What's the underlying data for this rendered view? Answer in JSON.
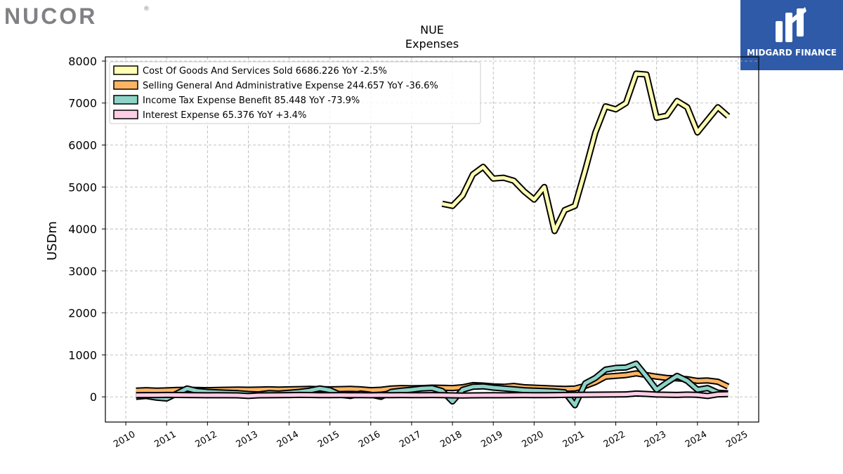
{
  "logos": {
    "left_brand": "NUCOR",
    "left_mark": "®",
    "right_brand": "MIDGARD FINANCE"
  },
  "chart_data": {
    "type": "line",
    "title": "NUE",
    "subtitle": "Expenses",
    "xlabel": "",
    "ylabel": "USDm",
    "xlim": [
      2009.5,
      2025.5
    ],
    "ylim": [
      -600,
      8100
    ],
    "x_ticks": [
      "2010",
      "2011",
      "2012",
      "2013",
      "2014",
      "2015",
      "2016",
      "2017",
      "2018",
      "2019",
      "2020",
      "2021",
      "2022",
      "2023",
      "2024",
      "2025"
    ],
    "y_ticks": [
      "0",
      "1000",
      "2000",
      "3000",
      "4000",
      "5000",
      "6000",
      "7000",
      "8000"
    ],
    "grid": true,
    "legend_position": "top-left",
    "series": [
      {
        "name": "Cost Of Goods And Services Sold",
        "legend": "Cost Of Goods And Services Sold  6686.226 YoY -2.5%",
        "color": "#ffffb3",
        "x": [
          2017.75,
          2018.0,
          2018.25,
          2018.5,
          2018.75,
          2019.0,
          2019.25,
          2019.5,
          2019.75,
          2020.0,
          2020.25,
          2020.5,
          2020.75,
          2021.0,
          2021.25,
          2021.5,
          2021.75,
          2022.0,
          2022.25,
          2022.5,
          2022.75,
          2023.0,
          2023.25,
          2023.5,
          2023.75,
          2024.0,
          2024.25,
          2024.5,
          2024.75
        ],
        "y": [
          4600,
          4550,
          4800,
          5300,
          5480,
          5200,
          5220,
          5150,
          4900,
          4700,
          5000,
          3950,
          4450,
          4550,
          5400,
          6300,
          6920,
          6850,
          7000,
          7700,
          7680,
          6650,
          6700,
          7050,
          6900,
          6300,
          6600,
          6900,
          6686
        ]
      },
      {
        "name": "Selling General And Administrative Expense",
        "legend": "Selling General And Administrative Expense  244.657 YoY -36.6%",
        "color": "#fdb462",
        "x": [
          2010.25,
          2010.5,
          2010.75,
          2011.0,
          2011.25,
          2011.5,
          2011.75,
          2012.0,
          2012.25,
          2012.5,
          2012.75,
          2013.0,
          2013.25,
          2013.5,
          2013.75,
          2014.0,
          2014.25,
          2014.5,
          2014.75,
          2015.0,
          2015.25,
          2015.5,
          2015.75,
          2016.0,
          2016.25,
          2016.5,
          2016.75,
          2017.0,
          2017.25,
          2017.5,
          2017.75,
          2018.0,
          2018.25,
          2018.5,
          2018.75,
          2019.0,
          2019.25,
          2019.5,
          2019.75,
          2020.0,
          2020.25,
          2020.5,
          2020.75,
          2021.0,
          2021.25,
          2021.5,
          2021.75,
          2022.0,
          2022.25,
          2022.5,
          2022.75,
          2023.0,
          2023.25,
          2023.5,
          2023.75,
          2024.0,
          2024.25,
          2024.5,
          2024.75
        ],
        "y": [
          150,
          160,
          150,
          155,
          165,
          170,
          165,
          160,
          165,
          170,
          175,
          170,
          175,
          180,
          175,
          180,
          185,
          190,
          185,
          180,
          185,
          190,
          180,
          160,
          170,
          200,
          210,
          205,
          210,
          220,
          215,
          210,
          230,
          280,
          270,
          250,
          240,
          260,
          230,
          220,
          210,
          200,
          190,
          200,
          260,
          350,
          480,
          500,
          520,
          560,
          520,
          480,
          450,
          440,
          420,
          380,
          390,
          360,
          245
        ]
      },
      {
        "name": "Income Tax Expense Benefit",
        "legend": "Income Tax Expense Benefit  85.448 YoY -73.9%",
        "color": "#8dd3c7",
        "x": [
          2010.25,
          2010.5,
          2010.75,
          2011.0,
          2011.25,
          2011.5,
          2011.75,
          2012.0,
          2012.25,
          2012.5,
          2012.75,
          2013.0,
          2013.25,
          2013.5,
          2013.75,
          2014.0,
          2014.25,
          2014.5,
          2014.75,
          2015.0,
          2015.25,
          2015.5,
          2015.75,
          2016.0,
          2016.25,
          2016.5,
          2016.75,
          2017.0,
          2017.25,
          2017.5,
          2017.75,
          2018.0,
          2018.25,
          2018.5,
          2018.75,
          2019.0,
          2019.25,
          2019.5,
          2019.75,
          2020.0,
          2020.25,
          2020.5,
          2020.75,
          2021.0,
          2021.25,
          2021.5,
          2021.75,
          2022.0,
          2022.25,
          2022.5,
          2022.75,
          2023.0,
          2023.25,
          2023.5,
          2023.75,
          2024.0,
          2024.25,
          2024.5,
          2024.75
        ],
        "y": [
          0,
          20,
          -20,
          -40,
          80,
          200,
          140,
          120,
          110,
          100,
          90,
          70,
          60,
          90,
          80,
          100,
          120,
          150,
          200,
          160,
          50,
          20,
          80,
          50,
          0,
          120,
          150,
          170,
          200,
          210,
          140,
          -110,
          170,
          240,
          250,
          220,
          200,
          180,
          160,
          150,
          140,
          130,
          110,
          -200,
          320,
          450,
          650,
          690,
          700,
          790,
          490,
          170,
          340,
          500,
          380,
          170,
          210,
          100,
          85
        ]
      },
      {
        "name": "Interest Expense",
        "legend": "Interest Expense  65.376 YoY +3.4%",
        "color": "#fccde5",
        "x": [
          2010.25,
          2010.5,
          2010.75,
          2011.0,
          2011.25,
          2011.5,
          2011.75,
          2012.0,
          2012.25,
          2012.5,
          2012.75,
          2013.0,
          2013.25,
          2013.5,
          2013.75,
          2014.0,
          2014.25,
          2014.5,
          2014.75,
          2015.0,
          2015.25,
          2015.5,
          2015.75,
          2016.0,
          2016.25,
          2016.5,
          2016.75,
          2017.0,
          2017.25,
          2017.5,
          2017.75,
          2018.0,
          2018.25,
          2018.5,
          2018.75,
          2019.0,
          2019.25,
          2019.5,
          2019.75,
          2020.0,
          2020.25,
          2020.5,
          2020.75,
          2021.0,
          2021.25,
          2021.5,
          2021.75,
          2022.0,
          2022.25,
          2022.5,
          2022.75,
          2023.0,
          2023.25,
          2023.5,
          2023.75,
          2024.0,
          2024.25,
          2024.5,
          2024.75
        ],
        "y": [
          40,
          42,
          43,
          45,
          44,
          42,
          40,
          38,
          40,
          38,
          35,
          20,
          35,
          38,
          40,
          42,
          45,
          44,
          40,
          40,
          42,
          41,
          40,
          38,
          42,
          40,
          42,
          40,
          41,
          42,
          40,
          35,
          30,
          35,
          38,
          40,
          38,
          40,
          42,
          41,
          40,
          42,
          45,
          48,
          50,
          52,
          55,
          58,
          60,
          80,
          70,
          55,
          50,
          45,
          55,
          48,
          20,
          60,
          65
        ]
      }
    ]
  }
}
